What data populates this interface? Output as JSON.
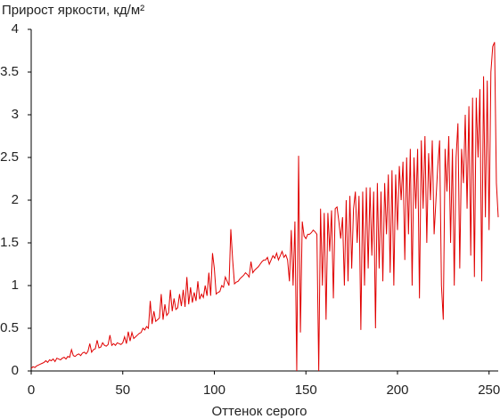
{
  "chart_data": {
    "type": "line",
    "y_label": "Прирост яркости, кд/м²",
    "x_label": "Оттенок серого",
    "xlim": [
      0,
      255
    ],
    "ylim": [
      0,
      4
    ],
    "xticks": [
      0,
      50,
      100,
      150,
      200,
      250
    ],
    "yticks": [
      0,
      0.5,
      1,
      1.5,
      2,
      2.5,
      3,
      3.5,
      4
    ],
    "x": [
      0,
      1,
      2,
      3,
      4,
      5,
      6,
      7,
      8,
      9,
      10,
      11,
      12,
      13,
      14,
      15,
      16,
      17,
      18,
      19,
      20,
      21,
      22,
      23,
      24,
      25,
      26,
      27,
      28,
      29,
      30,
      31,
      32,
      33,
      34,
      35,
      36,
      37,
      38,
      39,
      40,
      41,
      42,
      43,
      44,
      45,
      46,
      47,
      48,
      49,
      50,
      51,
      52,
      53,
      54,
      55,
      56,
      57,
      58,
      59,
      60,
      61,
      62,
      63,
      64,
      65,
      66,
      67,
      68,
      69,
      70,
      71,
      72,
      73,
      74,
      75,
      76,
      77,
      78,
      79,
      80,
      81,
      82,
      83,
      84,
      85,
      86,
      87,
      88,
      89,
      90,
      91,
      92,
      93,
      94,
      95,
      96,
      97,
      98,
      99,
      100,
      101,
      102,
      103,
      104,
      105,
      106,
      107,
      108,
      109,
      110,
      111,
      112,
      113,
      114,
      115,
      116,
      117,
      118,
      119,
      120,
      121,
      122,
      123,
      124,
      125,
      126,
      127,
      128,
      129,
      130,
      131,
      132,
      133,
      134,
      135,
      136,
      137,
      138,
      139,
      140,
      141,
      142,
      143,
      144,
      145,
      146,
      147,
      148,
      149,
      150,
      151,
      152,
      153,
      154,
      155,
      156,
      157,
      158,
      159,
      160,
      161,
      162,
      163,
      164,
      165,
      166,
      167,
      168,
      169,
      170,
      171,
      172,
      173,
      174,
      175,
      176,
      177,
      178,
      179,
      180,
      181,
      182,
      183,
      184,
      185,
      186,
      187,
      188,
      189,
      190,
      191,
      192,
      193,
      194,
      195,
      196,
      197,
      198,
      199,
      200,
      201,
      202,
      203,
      204,
      205,
      206,
      207,
      208,
      209,
      210,
      211,
      212,
      213,
      214,
      215,
      216,
      217,
      218,
      219,
      220,
      221,
      222,
      223,
      224,
      225,
      226,
      227,
      228,
      229,
      230,
      231,
      232,
      233,
      234,
      235,
      236,
      237,
      238,
      239,
      240,
      241,
      242,
      243,
      244,
      245,
      246,
      247,
      248,
      249,
      250,
      251,
      252,
      253,
      254,
      255
    ],
    "series": [
      {
        "color": "#e00000",
        "values": [
          0.03,
          0.05,
          0.04,
          0.06,
          0.07,
          0.08,
          0.09,
          0.1,
          0.12,
          0.1,
          0.13,
          0.12,
          0.14,
          0.11,
          0.15,
          0.14,
          0.13,
          0.15,
          0.16,
          0.14,
          0.17,
          0.16,
          0.25,
          0.18,
          0.17,
          0.19,
          0.2,
          0.18,
          0.21,
          0.22,
          0.2,
          0.23,
          0.32,
          0.22,
          0.25,
          0.26,
          0.36,
          0.27,
          0.28,
          0.33,
          0.3,
          0.29,
          0.31,
          0.42,
          0.3,
          0.32,
          0.3,
          0.33,
          0.32,
          0.31,
          0.33,
          0.4,
          0.32,
          0.46,
          0.35,
          0.45,
          0.38,
          0.4,
          0.42,
          0.44,
          0.45,
          0.5,
          0.48,
          0.52,
          0.5,
          0.82,
          0.55,
          0.7,
          0.58,
          0.6,
          0.62,
          0.9,
          0.6,
          0.78,
          0.65,
          0.68,
          0.95,
          0.7,
          0.85,
          0.72,
          0.74,
          0.9,
          0.76,
          0.95,
          0.75,
          1.1,
          0.78,
          0.98,
          0.8,
          0.92,
          0.82,
          1.05,
          0.84,
          0.9,
          0.86,
          1.0,
          0.88,
          1.15,
          0.88,
          1.38,
          1.2,
          0.9,
          0.92,
          0.93,
          1.0,
          0.98,
          1.1,
          1.05,
          1.0,
          1.66,
          1.3,
          1.02,
          1.04,
          1.05,
          1.08,
          1.1,
          1.12,
          1.15,
          1.13,
          1.1,
          1.28,
          1.15,
          1.18,
          1.2,
          1.22,
          1.25,
          1.28,
          1.3,
          1.3,
          1.33,
          1.25,
          1.3,
          1.35,
          1.32,
          1.38,
          1.3,
          1.35,
          1.4,
          1.33,
          1.36,
          1.3,
          1.05,
          1.65,
          1.0,
          1.75,
          0.0,
          2.52,
          0.45,
          1.75,
          1.58,
          1.55,
          1.6,
          1.6,
          1.62,
          1.65,
          1.63,
          1.6,
          0.0,
          1.9,
          1.0,
          1.85,
          0.6,
          1.85,
          1.4,
          1.88,
          0.85,
          1.9,
          1.92,
          1.75,
          1.55,
          1.8,
          1.0,
          2.0,
          1.05,
          2.05,
          1.2,
          1.9,
          2.1,
          1.5,
          2.05,
          0.48,
          2.1,
          1.0,
          2.15,
          1.2,
          2.15,
          1.35,
          2.1,
          0.5,
          2.2,
          1.2,
          2.1,
          1.05,
          2.2,
          1.6,
          2.3,
          1.15,
          2.35,
          1.0,
          2.3,
          1.65,
          2.4,
          2.0,
          2.45,
          1.3,
          2.5,
          1.6,
          2.6,
          1.0,
          2.5,
          1.9,
          2.6,
          0.85,
          2.7,
          1.9,
          2.75,
          1.5,
          2.55,
          2.0,
          2.7,
          1.6,
          2.0,
          2.4,
          2.7,
          1.0,
          0.6,
          2.6,
          2.1,
          2.75,
          1.5,
          2.6,
          1.0,
          2.5,
          2.9,
          1.2,
          2.6,
          2.2,
          3.0,
          1.9,
          3.1,
          1.35,
          3.2,
          1.1,
          3.2,
          2.5,
          3.3,
          1.05,
          3.45,
          1.8,
          3.4,
          1.65,
          3.5,
          3.8,
          3.85,
          2.2,
          1.8
        ]
      }
    ]
  }
}
